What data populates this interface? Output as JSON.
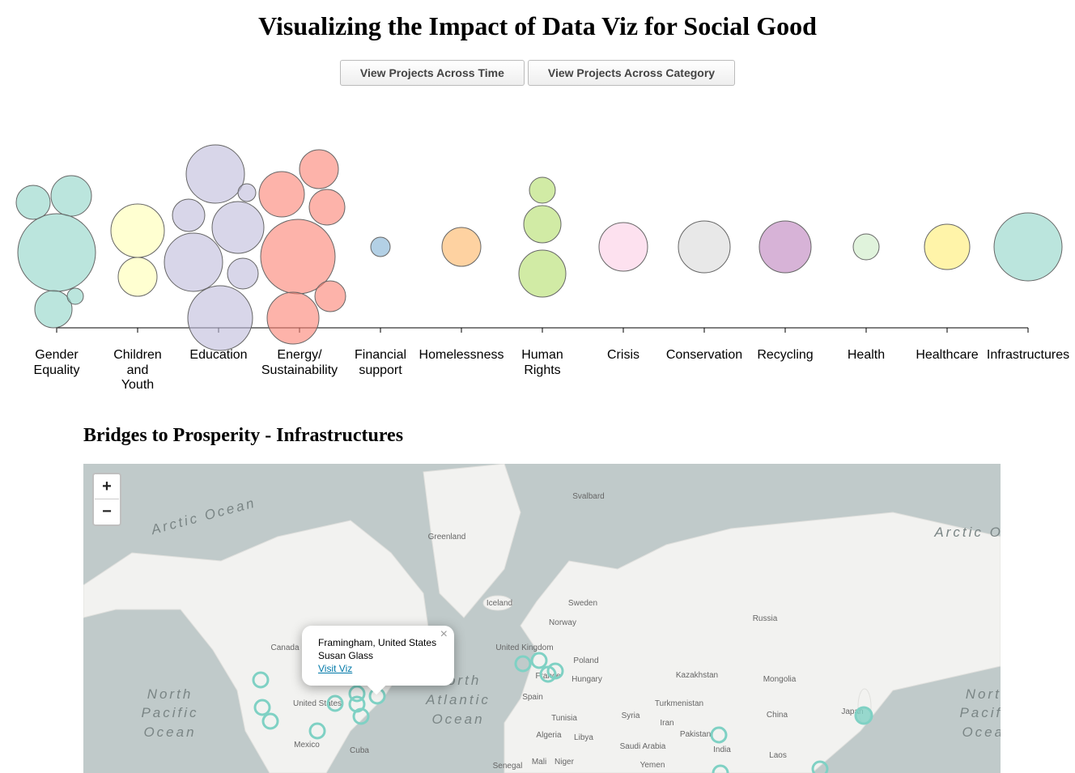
{
  "header": {
    "title": "Visualizing the Impact of Data Viz for Social Good"
  },
  "buttons": [
    "View Projects Across Time",
    "View Projects Across Category"
  ],
  "chart_data": {
    "type": "bubble",
    "categories": [
      "Gender Equality",
      "Children and Youth",
      "Education",
      "Energy/ Sustainability",
      "Financial support",
      "Homelessness",
      "Human Rights",
      "Crisis",
      "Conservation",
      "Recycling",
      "Health",
      "Healthcare",
      "Infrastructures"
    ],
    "colors": [
      "#8dd3c7",
      "#ffffb3",
      "#bebada",
      "#fb8072",
      "#80b1d3",
      "#fdb462",
      "#b3de69",
      "#fccde5",
      "#d9d9d9",
      "#bc80bd",
      "#ccebc5",
      "#ffed6f",
      "#8dd3c7"
    ],
    "values": [
      [
        21,
        25,
        48,
        23,
        10
      ],
      [
        33,
        24
      ],
      [
        36,
        20,
        11,
        32,
        36,
        19,
        40
      ],
      [
        24,
        28,
        22,
        46,
        32,
        19
      ],
      [
        12
      ],
      [
        24
      ],
      [
        16,
        23,
        29
      ],
      [
        30
      ],
      [
        32
      ],
      [
        32
      ],
      [
        16
      ],
      [
        28
      ],
      [
        42
      ]
    ]
  },
  "map": {
    "title": "Bridges to Prosperity - Infrastructures",
    "zoom_in": "+",
    "zoom_out": "−",
    "labels": [
      "Arctic Ocean",
      "Arctic Ocean",
      "Greenland",
      "Svalbard",
      "Iceland",
      "Sweden",
      "Norway",
      "Russia",
      "United Kingdom",
      "Poland",
      "Kazakhstan",
      "Mongolia",
      "Hungary",
      "France",
      "Canada",
      "United States",
      "Spain",
      "Turkmenistan",
      "China",
      "Japan",
      "Tunisia",
      "Syria",
      "Iran",
      "Algeria",
      "Libya",
      "Pakistan",
      "India",
      "Mexico",
      "Cuba",
      "Saudi Arabia",
      "Laos",
      "Senegal",
      "Mali",
      "Niger",
      "Yemen",
      "North",
      "Pacific",
      "Ocean",
      "North",
      "Atlantic",
      "Ocean",
      "North",
      "Pacific",
      "Ocean"
    ],
    "popup": {
      "place": "Framingham, United States",
      "person": "Susan Glass",
      "link": "Visit Viz",
      "close": "×"
    }
  }
}
